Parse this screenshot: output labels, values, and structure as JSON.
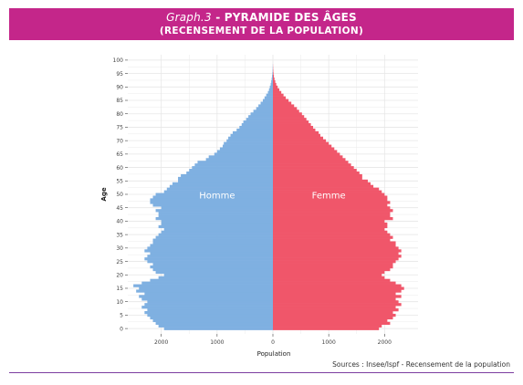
{
  "header": {
    "graph_label": "Graph.3",
    "separator": "-",
    "title": "PYRAMIDE DES ÂGES",
    "subtitle": "(RECENSEMENT DE LA POPULATION)",
    "background_color": "#c4268a"
  },
  "source_text": "Sources : Insee/Ispf - Recensement de la population",
  "chart_data": {
    "type": "bar",
    "orientation": "horizontal-population-pyramid",
    "xlabel": "Population",
    "ylabel": "Age",
    "x_ticks": [
      2000,
      1000,
      0,
      1000,
      2000
    ],
    "x_range": [
      -2600,
      2600
    ],
    "y_ticks": [
      0,
      5,
      10,
      15,
      20,
      25,
      30,
      35,
      40,
      45,
      50,
      55,
      60,
      65,
      70,
      75,
      80,
      85,
      90,
      95,
      100
    ],
    "y_range": [
      -2,
      102
    ],
    "grid": true,
    "series": [
      {
        "name": "Homme",
        "color": "#7fb0e1",
        "ages": [
          0,
          1,
          2,
          3,
          4,
          5,
          6,
          7,
          8,
          9,
          10,
          11,
          12,
          13,
          14,
          15,
          16,
          17,
          18,
          19,
          20,
          21,
          22,
          23,
          24,
          25,
          26,
          27,
          28,
          29,
          30,
          31,
          32,
          33,
          34,
          35,
          36,
          37,
          38,
          39,
          40,
          41,
          42,
          43,
          44,
          45,
          46,
          47,
          48,
          49,
          50,
          51,
          52,
          53,
          54,
          55,
          56,
          57,
          58,
          59,
          60,
          61,
          62,
          63,
          64,
          65,
          66,
          67,
          68,
          69,
          70,
          71,
          72,
          73,
          74,
          75,
          76,
          77,
          78,
          79,
          80,
          81,
          82,
          83,
          84,
          85,
          86,
          87,
          88,
          89,
          90,
          91,
          92,
          93,
          94,
          95,
          96,
          97,
          98
        ],
        "values": [
          1950,
          2050,
          2100,
          2150,
          2200,
          2250,
          2300,
          2250,
          2350,
          2300,
          2250,
          2350,
          2400,
          2300,
          2450,
          2400,
          2500,
          2350,
          2200,
          2050,
          1950,
          2100,
          2150,
          2200,
          2150,
          2250,
          2300,
          2250,
          2200,
          2300,
          2250,
          2200,
          2150,
          2150,
          2100,
          2050,
          2000,
          1950,
          2050,
          2000,
          2000,
          2100,
          2050,
          2050,
          2100,
          2000,
          2150,
          2200,
          2200,
          2150,
          2100,
          1950,
          1900,
          1850,
          1800,
          1700,
          1700,
          1650,
          1550,
          1500,
          1450,
          1400,
          1350,
          1200,
          1150,
          1050,
          1000,
          950,
          900,
          880,
          830,
          800,
          760,
          720,
          650,
          600,
          560,
          530,
          480,
          440,
          400,
          350,
          300,
          260,
          220,
          180,
          150,
          120,
          90,
          70,
          55,
          40,
          30,
          22,
          15,
          10,
          6,
          4,
          2
        ]
      },
      {
        "name": "Femme",
        "color": "#f0566a",
        "ages": [
          0,
          1,
          2,
          3,
          4,
          5,
          6,
          7,
          8,
          9,
          10,
          11,
          12,
          13,
          14,
          15,
          16,
          17,
          18,
          19,
          20,
          21,
          22,
          23,
          24,
          25,
          26,
          27,
          28,
          29,
          30,
          31,
          32,
          33,
          34,
          35,
          36,
          37,
          38,
          39,
          40,
          41,
          42,
          43,
          44,
          45,
          46,
          47,
          48,
          49,
          50,
          51,
          52,
          53,
          54,
          55,
          56,
          57,
          58,
          59,
          60,
          61,
          62,
          63,
          64,
          65,
          66,
          67,
          68,
          69,
          70,
          71,
          72,
          73,
          74,
          75,
          76,
          77,
          78,
          79,
          80,
          81,
          82,
          83,
          84,
          85,
          86,
          87,
          88,
          89,
          90,
          91,
          92,
          93,
          94,
          95,
          96,
          97,
          98
        ],
        "values": [
          1900,
          1950,
          2100,
          2050,
          2150,
          2200,
          2150,
          2250,
          2200,
          2300,
          2250,
          2200,
          2300,
          2200,
          2300,
          2350,
          2300,
          2200,
          2100,
          2000,
          1950,
          2000,
          2100,
          2150,
          2150,
          2200,
          2250,
          2300,
          2250,
          2300,
          2250,
          2200,
          2200,
          2100,
          2150,
          2100,
          2050,
          2000,
          2050,
          2050,
          2000,
          2150,
          2100,
          2100,
          2150,
          2100,
          2050,
          2100,
          2050,
          2050,
          2000,
          1950,
          1900,
          1800,
          1750,
          1700,
          1600,
          1600,
          1550,
          1500,
          1450,
          1400,
          1350,
          1300,
          1250,
          1200,
          1150,
          1100,
          1050,
          1000,
          950,
          900,
          850,
          820,
          760,
          720,
          680,
          640,
          600,
          560,
          520,
          470,
          430,
          380,
          330,
          280,
          230,
          190,
          150,
          115,
          85,
          60,
          42,
          28,
          18,
          11,
          7,
          4,
          2
        ]
      }
    ]
  }
}
